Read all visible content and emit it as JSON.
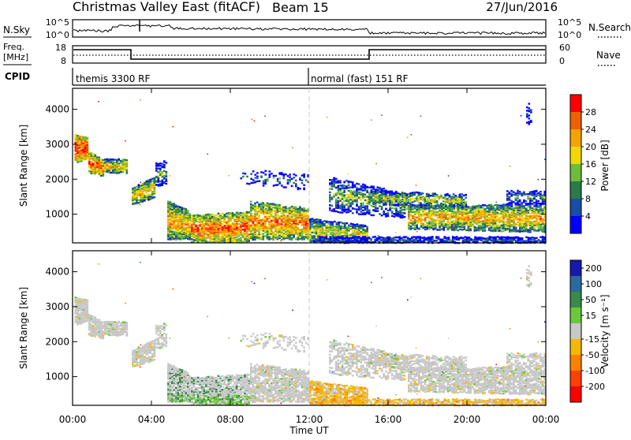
{
  "header": {
    "title": "Christmas Valley East (fitACF)",
    "beam": "Beam 15",
    "date": "27/Jun/2016"
  },
  "top_panels": {
    "nsky_label": "N.Sky",
    "nsearch_label": "N.Search",
    "nsky_ticks": [
      "10^5",
      "10^0"
    ],
    "nsky_right_ticks": [
      "10^5",
      "10^0"
    ],
    "freq_label_1": "Freq.",
    "freq_label_2": "[MHz]",
    "freq_ticks": [
      "18",
      "8"
    ],
    "nave_label": "Nave",
    "nave_ticks": [
      "60",
      "0"
    ],
    "cpid_label": "CPID",
    "cpid_left": "themis 3300 RF",
    "cpid_right": "normal (fast) 151 RF"
  },
  "colors": {
    "axis": "#000000",
    "dashed_line": "#c8c8c8",
    "velocity_ground": "#c8c8c8"
  },
  "chart_data": [
    {
      "type": "heatmap",
      "name": "power",
      "ylabel": "Slant Range [km]",
      "ylim": [
        180,
        4600
      ],
      "yticks": [
        "1000",
        "2000",
        "3000",
        "4000"
      ],
      "ytick_values": [
        1000,
        2000,
        3000,
        4000
      ],
      "colorbar_label": "Power [dB]",
      "colorbar_ticks": [
        "4",
        "8",
        "12",
        "16",
        "20",
        "24",
        "28"
      ],
      "colorbar_colors": [
        "#0000ff",
        "#1a4da8",
        "#2a7a4a",
        "#6cbd3a",
        "#f2d800",
        "#f5a300",
        "#f06000",
        "#ff0000"
      ]
    },
    {
      "type": "heatmap",
      "name": "velocity",
      "ylabel": "Slant Range [km]",
      "ylim": [
        180,
        4600
      ],
      "yticks": [
        "1000",
        "2000",
        "3000",
        "4000"
      ],
      "ytick_values": [
        1000,
        2000,
        3000,
        4000
      ],
      "colorbar_label": "Velocity [m s⁻¹]",
      "colorbar_ticks": [
        "200",
        "100",
        "50",
        "15",
        "-15",
        "-50",
        "-100",
        "-200"
      ],
      "colorbar_colors": [
        "#1818b0",
        "#2a6aa0",
        "#3a8a4a",
        "#6cc83a",
        "#c8c8c8",
        "#f5b800",
        "#ff8000",
        "#ff4000",
        "#ff0000"
      ]
    }
  ],
  "xaxis": {
    "label": "Time UT",
    "ticks": [
      "00:00",
      "04:00",
      "08:00",
      "12:00",
      "16:00",
      "20:00",
      "00:00"
    ],
    "tick_hours": [
      0,
      4,
      8,
      12,
      16,
      20,
      24
    ],
    "range_hours": [
      0,
      24
    ]
  }
}
